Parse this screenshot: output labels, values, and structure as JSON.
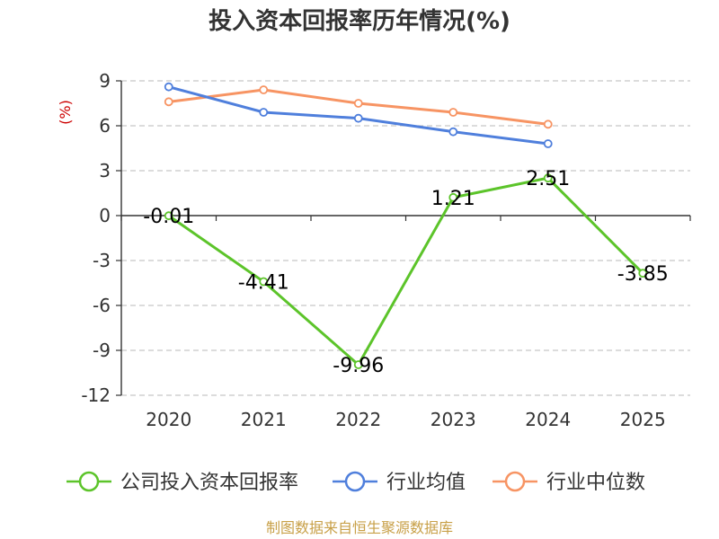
{
  "chart_data": {
    "type": "line",
    "title": "投入资本回报率历年情况(%)",
    "ylabel": "(%)",
    "categories": [
      "2020",
      "2021",
      "2022",
      "2023",
      "2024",
      "2025"
    ],
    "ylim": [
      -12,
      9
    ],
    "yticks": [
      9,
      6,
      3,
      0,
      -3,
      -6,
      -9,
      -12
    ],
    "grid": true,
    "legend_position": "bottom",
    "series": [
      {
        "name": "公司投入资本回报率",
        "color": "#5cc42a",
        "values": [
          -0.01,
          -4.41,
          -9.96,
          1.21,
          2.51,
          -3.85
        ],
        "labels": [
          "-0.01",
          "-4.41",
          "-9.96",
          "1.21",
          "2.51",
          "-3.85"
        ]
      },
      {
        "name": "行业均值",
        "color": "#4f7fdc",
        "values": [
          8.6,
          6.9,
          6.5,
          5.6,
          4.8,
          null
        ]
      },
      {
        "name": "行业中位数",
        "color": "#f79463",
        "values": [
          7.6,
          8.4,
          7.5,
          6.9,
          6.1,
          null
        ]
      }
    ]
  },
  "source": "制图数据来自恒生聚源数据库"
}
